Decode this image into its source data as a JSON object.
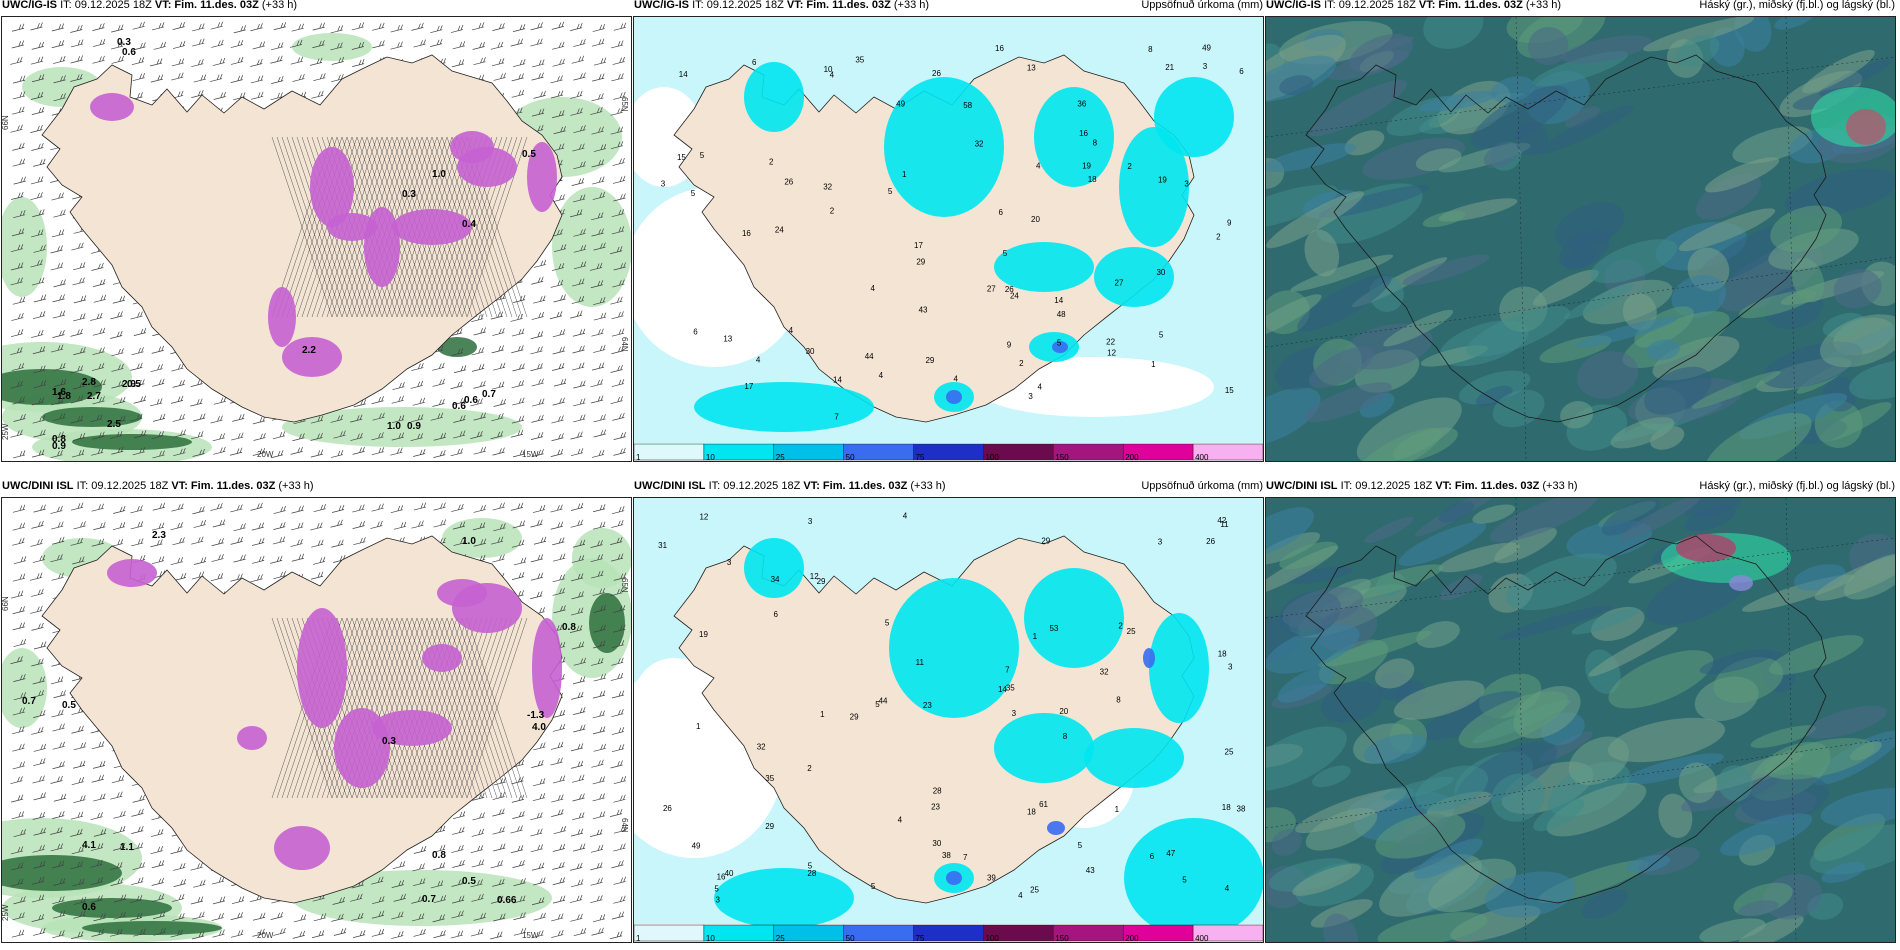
{
  "rows": [
    {
      "model": "UWC/IG-IS",
      "run": "IT: 09.12.2025 18Z",
      "valid_label": "VT:",
      "valid": "Fim. 11.des. 03Z",
      "lead": "(+33 h)",
      "wind_values": [
        "0.3",
        "0.6",
        "2.8",
        "0.5",
        "1.8",
        "2.9",
        "0.8",
        "1.6",
        "2.7",
        "2.5",
        "0.9",
        "1.0",
        "0.9",
        "0.6",
        "0.6",
        "0.7",
        "2.2",
        "0.3",
        "0.4",
        "1.0",
        "0.5"
      ],
      "precip_values": [
        "4",
        "4",
        "4",
        "2",
        "2",
        "2",
        "2",
        "2",
        "29",
        "30",
        "13",
        "15",
        "17",
        "26",
        "18",
        "8",
        "5",
        "21",
        "27",
        "19",
        "22",
        "24",
        "14",
        "12",
        "20",
        "8",
        "24",
        "26",
        "4",
        "49",
        "48",
        "49",
        "36",
        "44",
        "35",
        "29",
        "16",
        "5",
        "9",
        "14",
        "26",
        "6",
        "6",
        "5",
        "13",
        "30",
        "27",
        "43",
        "5",
        "3",
        "4",
        "32",
        "32",
        "16",
        "14",
        "15",
        "1",
        "1",
        "7",
        "6",
        "3",
        "3",
        "19",
        "16",
        "10",
        "17",
        "6",
        "9",
        "5",
        "5",
        "3",
        "4",
        "4",
        "58",
        "4"
      ],
      "cloud_label": "Háský (gr.), miðský (fj.bl.) og lágský (bl.)"
    },
    {
      "model": "UWC/DINI ISL",
      "run": "IT: 09.12.2025 18Z",
      "valid_label": "VT:",
      "valid": "Fim. 11.des. 03Z",
      "lead": "(+33 h)",
      "wind_values": [
        "2.3",
        "1.0",
        "0.7",
        "0.5",
        "4.1",
        "1.1",
        "0.6",
        "0.7",
        "0.5",
        "0.8",
        "0.3",
        "0.66",
        "-1.3",
        "4.0",
        "0.8"
      ],
      "precip_values": [
        "5",
        "4",
        "5",
        "5",
        "3",
        "3",
        "1",
        "5",
        "4",
        "5",
        "3",
        "38",
        "44",
        "23",
        "29",
        "14",
        "19",
        "28",
        "29",
        "31",
        "18",
        "11",
        "7",
        "16",
        "25",
        "32",
        "26",
        "35",
        "12",
        "8",
        "23",
        "25",
        "28",
        "26",
        "29",
        "20",
        "18",
        "49",
        "53",
        "47",
        "35",
        "32",
        "38",
        "40",
        "29",
        "61",
        "25",
        "39",
        "34",
        "30",
        "42",
        "18",
        "4",
        "1",
        "2",
        "2",
        "5",
        "11",
        "12",
        "1",
        "6",
        "43",
        "6",
        "8",
        "7",
        "5",
        "3",
        "3",
        "3",
        "1",
        "4"
      ],
      "cloud_label": "Háský (gr.), miðský (fj.bl.) og lágský (bl.)"
    }
  ],
  "precip_title": "Uppsöfnuð úrkoma (mm)",
  "legend_ticks": [
    "1",
    "10",
    "25",
    "50",
    "75",
    "100",
    "150",
    "200",
    "400"
  ],
  "legend_colors": [
    "#dff8fb",
    "#00e5ef",
    "#00bfe8",
    "#3a6cf0",
    "#1d2fc7",
    "#6b0b4d",
    "#a5157e",
    "#e0009a",
    "#f7b0f0"
  ],
  "lon_labels": [
    "20W",
    "15W"
  ],
  "lat_labels": [
    "66N",
    "25W"
  ],
  "lat_labels_right": [
    "65N",
    "64N"
  ],
  "colors": {
    "land": "#f4e4d4",
    "precip_light": "#c9f6fb",
    "precip_cyan": "#00e5ef",
    "purple": "#c561d1",
    "green_light": "#b7e3b7",
    "green_dark": "#2d6e3c",
    "cloud_base": "#2f6a6f"
  }
}
